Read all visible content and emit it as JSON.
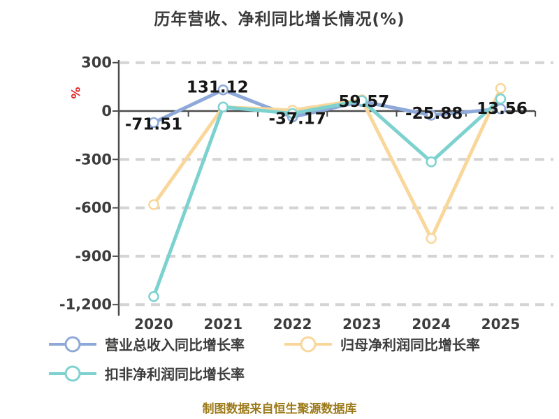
{
  "title": "历年营收、净利同比增长情况(%)",
  "source_note": "制图数据来自恒生聚源数据库",
  "colors": {
    "background": "#ffffff",
    "title_text": "#3a3a3a",
    "axis": "#4c4c4c",
    "grid": "#d4d4d4",
    "tick_text": "#3c3c3c",
    "data_label": "#161616",
    "unit": "#e12525",
    "legend_text": "#3c3c3c",
    "footer_text": "#9c7a1a"
  },
  "chart_data": {
    "type": "line",
    "title": "历年营收、净利同比增长情况(%)",
    "unit_label": "%",
    "categories": [
      "2020",
      "2021",
      "2022",
      "2023",
      "2024",
      "2025"
    ],
    "series": [
      {
        "name": "营业总收入同比增长率",
        "color": "#8ea9d9",
        "values": [
          -71.51,
          131.12,
          -37.17,
          59.57,
          -25.88,
          13.56
        ],
        "data_labels": [
          "-71.51",
          "131.12",
          "-37.17",
          "59.57",
          "-25.88",
          "13.56"
        ]
      },
      {
        "name": "归母净利润同比增长率",
        "color": "#f9d79b",
        "values": [
          -580,
          25,
          5,
          70,
          -790,
          140
        ]
      },
      {
        "name": "扣非净利润同比增长率",
        "color": "#7dd2d0",
        "values": [
          -1150,
          25,
          -15,
          65,
          -315,
          75
        ]
      }
    ],
    "yticks": [
      300,
      0,
      -300,
      -600,
      -900,
      -1200
    ],
    "ytick_labels": [
      "300",
      "0",
      "-300",
      "-600",
      "-900",
      "-1,200"
    ],
    "ylim": [
      -1200,
      300
    ],
    "x_axis_position": "zero",
    "grid": "horizontal-dashed",
    "legend_position": "bottom-left",
    "marker": "circle-white-fill"
  }
}
